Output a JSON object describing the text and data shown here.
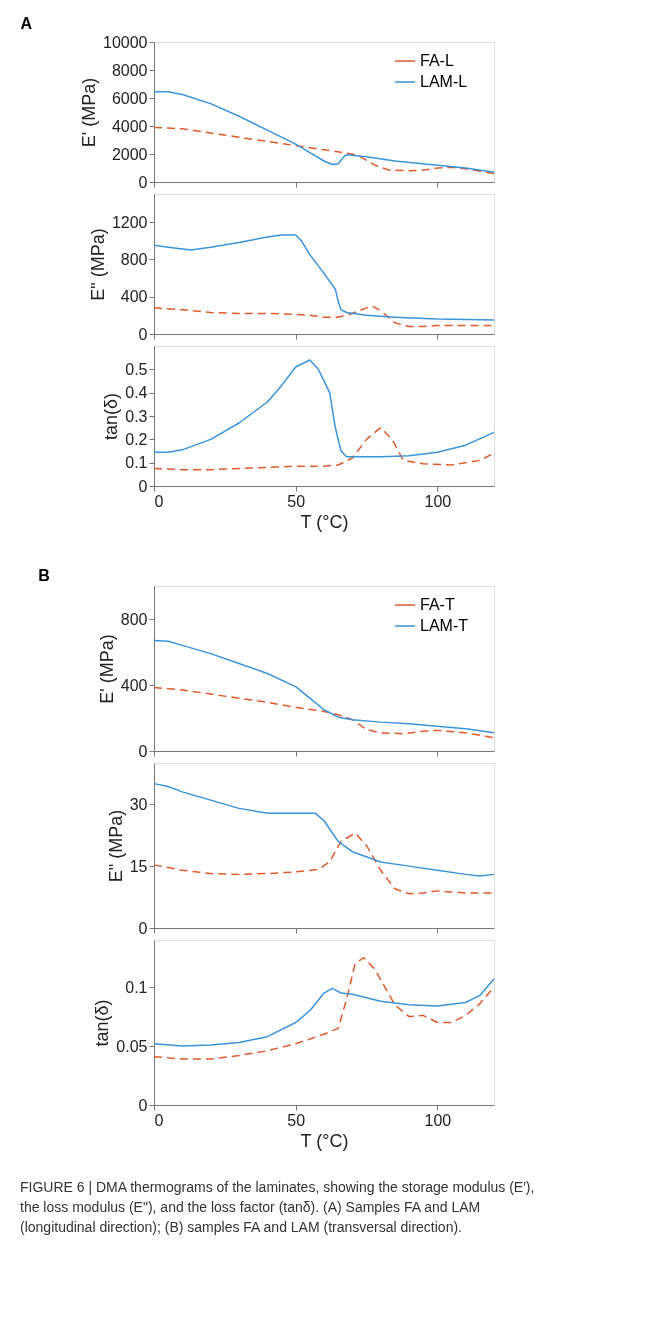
{
  "chart_data": [
    {
      "type": "line",
      "title": "A",
      "ylabel": "E' (MPa)",
      "xlim": [
        0,
        120
      ],
      "xticks": [
        0,
        50,
        100
      ],
      "ylim": [
        0,
        10000
      ],
      "yticks": [
        0,
        2000,
        4000,
        6000,
        8000,
        10000
      ],
      "tick_labels": "y",
      "legend": "top right",
      "grid": false,
      "series": [
        {
          "name": "FA-L",
          "color": "#e05a2b",
          "line_style": "dashed",
          "x": [
            0,
            10,
            20,
            30,
            40,
            50,
            60,
            70,
            73,
            78,
            83,
            90,
            95,
            100,
            105,
            110,
            120
          ],
          "values": [
            3900,
            3800,
            3500,
            3200,
            2900,
            2600,
            2300,
            2000,
            1800,
            1200,
            850,
            800,
            850,
            1000,
            1050,
            950,
            600
          ]
        },
        {
          "name": "LAM-L",
          "color": "#3a94d9",
          "line_style": "solid",
          "x": [
            0,
            5,
            10,
            20,
            30,
            40,
            50,
            55,
            60,
            63,
            65,
            67,
            68,
            75,
            85,
            100,
            110,
            120
          ],
          "values": [
            6450,
            6450,
            6250,
            5600,
            4700,
            3700,
            2700,
            2100,
            1500,
            1250,
            1300,
            1800,
            1950,
            1800,
            1500,
            1200,
            1000,
            700
          ]
        }
      ]
    },
    {
      "type": "line",
      "ylabel": "E\" (MPa)",
      "xlim": [
        0,
        120
      ],
      "xticks": [
        0,
        50,
        100
      ],
      "ylim": [
        0,
        1500
      ],
      "yticks": [
        0,
        400,
        800,
        1200
      ],
      "tick_labels": "y",
      "grid": false,
      "series": [
        {
          "color": "#e05a2b",
          "line_style": "dashed",
          "x": [
            0,
            10,
            20,
            30,
            40,
            50,
            55,
            60,
            65,
            70,
            75,
            77,
            80,
            85,
            90,
            95,
            100,
            110,
            120
          ],
          "values": [
            280,
            260,
            230,
            220,
            220,
            210,
            200,
            180,
            180,
            220,
            280,
            300,
            250,
            120,
            80,
            80,
            90,
            90,
            90
          ]
        },
        {
          "color": "#3a94d9",
          "line_style": "solid",
          "x": [
            0,
            5,
            13,
            20,
            30,
            40,
            45,
            50,
            52,
            55,
            60,
            64,
            65,
            66,
            68,
            75,
            85,
            100,
            120
          ],
          "values": [
            950,
            930,
            900,
            930,
            980,
            1040,
            1060,
            1060,
            1000,
            850,
            650,
            480,
            350,
            260,
            230,
            200,
            180,
            160,
            150
          ]
        }
      ]
    },
    {
      "type": "line",
      "ylabel": "tan(δ)",
      "xlabel": "T (°C)",
      "xlim": [
        0,
        120
      ],
      "xticks": [
        0,
        50,
        100
      ],
      "ylim": [
        0,
        0.6
      ],
      "yticks": [
        0,
        0.1,
        0.2,
        0.3,
        0.4,
        0.5
      ],
      "grid": false,
      "series": [
        {
          "color": "#e05a2b",
          "line_style": "dashed",
          "x": [
            0,
            10,
            20,
            30,
            40,
            50,
            60,
            65,
            70,
            75,
            80,
            84,
            88,
            95,
            105,
            115,
            120
          ],
          "values": [
            0.075,
            0.07,
            0.07,
            0.075,
            0.08,
            0.085,
            0.085,
            0.09,
            0.12,
            0.2,
            0.25,
            0.2,
            0.11,
            0.095,
            0.09,
            0.11,
            0.14
          ]
        },
        {
          "color": "#3a94d9",
          "line_style": "solid",
          "x": [
            0,
            5,
            10,
            20,
            30,
            40,
            45,
            50,
            55,
            58,
            62,
            64,
            66,
            68,
            80,
            90,
            100,
            110,
            120
          ],
          "values": [
            0.145,
            0.145,
            0.155,
            0.2,
            0.27,
            0.36,
            0.43,
            0.51,
            0.54,
            0.5,
            0.4,
            0.25,
            0.15,
            0.125,
            0.125,
            0.13,
            0.145,
            0.175,
            0.23
          ]
        }
      ]
    },
    {
      "type": "line",
      "title": "B",
      "ylabel": "E' (MPa)",
      "xlim": [
        0,
        120
      ],
      "xticks": [
        0,
        50,
        100
      ],
      "ylim": [
        0,
        1000
      ],
      "yticks": [
        0,
        400,
        800
      ],
      "tick_labels": "y",
      "legend": "top right",
      "grid": false,
      "series": [
        {
          "name": "FA-T",
          "color": "#e05a2b",
          "line_style": "dashed",
          "x": [
            0,
            10,
            20,
            30,
            40,
            50,
            60,
            65,
            70,
            75,
            80,
            88,
            95,
            100,
            110,
            120
          ],
          "values": [
            385,
            370,
            345,
            320,
            295,
            265,
            240,
            220,
            190,
            130,
            110,
            105,
            120,
            125,
            110,
            80
          ]
        },
        {
          "name": "LAM-T",
          "color": "#3a94d9",
          "line_style": "solid",
          "x": [
            0,
            5,
            10,
            20,
            30,
            40,
            50,
            55,
            60,
            65,
            70,
            80,
            90,
            100,
            110,
            120
          ],
          "values": [
            670,
            665,
            640,
            590,
            530,
            470,
            390,
            320,
            250,
            205,
            190,
            175,
            165,
            150,
            135,
            110
          ]
        }
      ]
    },
    {
      "type": "line",
      "ylabel": "E\" (MPa)",
      "xlim": [
        0,
        120
      ],
      "xticks": [
        0,
        50,
        100
      ],
      "ylim": [
        0,
        40
      ],
      "yticks": [
        0,
        15,
        30
      ],
      "tick_labels": "y",
      "grid": false,
      "series": [
        {
          "color": "#e05a2b",
          "line_style": "dashed",
          "x": [
            0,
            10,
            20,
            30,
            40,
            50,
            58,
            62,
            66,
            71,
            75,
            80,
            85,
            90,
            95,
            100,
            110,
            120
          ],
          "values": [
            15.3,
            14,
            13.2,
            13,
            13.2,
            13.6,
            14.2,
            16,
            21,
            23,
            20,
            14,
            9.5,
            8.3,
            8.5,
            9,
            8.5,
            8.5
          ]
        },
        {
          "color": "#3a94d9",
          "line_style": "solid",
          "x": [
            0,
            5,
            10,
            20,
            30,
            40,
            50,
            57,
            60,
            65,
            70,
            80,
            90,
            100,
            110,
            115,
            120
          ],
          "values": [
            35,
            34.3,
            33,
            31,
            29,
            27.8,
            27.8,
            27.8,
            26,
            21,
            18.5,
            16,
            15,
            14,
            13,
            12.6,
            13
          ]
        }
      ]
    },
    {
      "type": "line",
      "ylabel": "tan(δ)",
      "xlabel": "T (°C)",
      "xlim": [
        0,
        120
      ],
      "xticks": [
        0,
        50,
        100
      ],
      "ylim": [
        0,
        0.14
      ],
      "yticks": [
        0,
        0.05,
        0.1
      ],
      "grid": false,
      "annotations": [
        "FIGURE 6 | DMA thermograms of the laminates, showing the storage modulus (E′), the loss modulus (E\"), and the loss factor (tanδ). (A) Samples FA and LAM (longitudinal direction); (B) samples FA and LAM (transversal direction)."
      ],
      "series": [
        {
          "color": "#e05a2b",
          "line_style": "dashed",
          "x": [
            0,
            10,
            20,
            30,
            40,
            50,
            60,
            65,
            68,
            71,
            74,
            78,
            85,
            90,
            95,
            100,
            105,
            110,
            115,
            120
          ],
          "values": [
            0.041,
            0.039,
            0.039,
            0.042,
            0.046,
            0.052,
            0.06,
            0.065,
            0.09,
            0.12,
            0.125,
            0.115,
            0.085,
            0.075,
            0.076,
            0.07,
            0.07,
            0.076,
            0.086,
            0.1
          ]
        },
        {
          "color": "#3a94d9",
          "line_style": "solid",
          "x": [
            0,
            10,
            20,
            30,
            40,
            50,
            55,
            60,
            63,
            66,
            70,
            80,
            90,
            100,
            110,
            115,
            120
          ],
          "values": [
            0.052,
            0.05,
            0.051,
            0.053,
            0.058,
            0.07,
            0.08,
            0.095,
            0.099,
            0.095,
            0.094,
            0.088,
            0.085,
            0.084,
            0.087,
            0.093,
            0.107
          ]
        }
      ]
    }
  ]
}
